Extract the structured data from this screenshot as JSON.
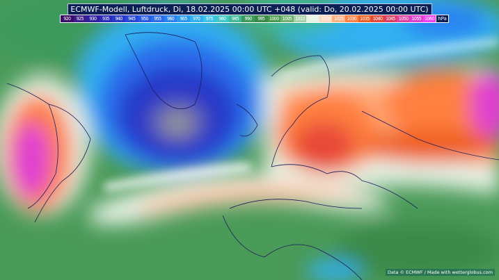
{
  "title": "ECMWF-Modell, Luftdruck, Di, 18.02.2025 00:00 UTC +048 (valid: Do, 20.02.2025 00:00 UTC)",
  "legend": {
    "unit": "hPa",
    "levels": [
      "920",
      "925",
      "930",
      "935",
      "940",
      "945",
      "950",
      "955",
      "960",
      "965",
      "970",
      "975",
      "980",
      "985",
      "990",
      "995",
      "1000",
      "1005",
      "1010",
      "1015",
      "1020",
      "1025",
      "1030",
      "1035",
      "1040",
      "1045",
      "1050",
      "1055",
      "1060"
    ],
    "colors": [
      "#3a0a6a",
      "#3d1a8a",
      "#3020a0",
      "#2a2ab8",
      "#2838c8",
      "#2a48d8",
      "#2a5ae4",
      "#2a6cec",
      "#2a82f0",
      "#2a98f0",
      "#30b0f0",
      "#3cc4e8",
      "#40c8c8",
      "#40b89a",
      "#3c9a5c",
      "#3a8a48",
      "#4a9a50",
      "#70b070",
      "#a8d0a8",
      "#e6f2e6",
      "#ffd8c0",
      "#ffb080",
      "#ff8040",
      "#f06020",
      "#e84838",
      "#e03c60",
      "#e040a0",
      "#e040d0",
      "#f040f0"
    ]
  },
  "credit": "Data © ECMWF / Made with wetterglobus.com"
}
